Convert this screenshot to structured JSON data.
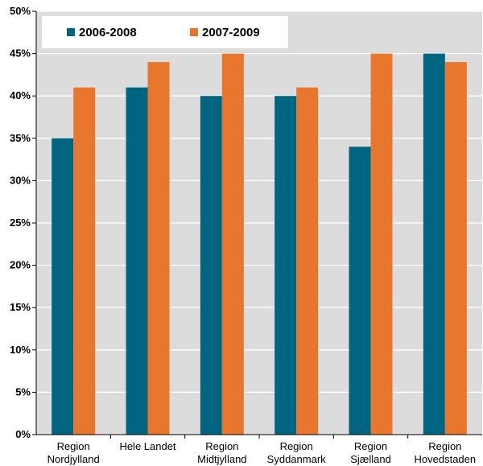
{
  "chart_data": {
    "type": "bar",
    "title": "",
    "xlabel": "",
    "ylabel": "",
    "categories": [
      [
        "Region",
        "Nordjylland"
      ],
      [
        "Hele Landet"
      ],
      [
        "Region",
        "Midtjylland"
      ],
      [
        "Region",
        "Syddanmark"
      ],
      [
        "Region",
        "Sjælland"
      ],
      [
        "Region",
        "Hovedstaden"
      ]
    ],
    "series": [
      {
        "name": "2006-2008",
        "color": "#006580",
        "values": [
          35,
          41,
          40,
          40,
          34,
          45
        ]
      },
      {
        "name": "2007-2009",
        "color": "#E8762C",
        "values": [
          41,
          44,
          45,
          41,
          45,
          44
        ]
      }
    ],
    "ylim": [
      0,
      50
    ],
    "yticks": [
      "0%",
      "5%",
      "10%",
      "15%",
      "20%",
      "25%",
      "30%",
      "35%",
      "40%",
      "45%",
      "50%"
    ],
    "grid": true,
    "legend_position": "top-left",
    "plot_background": "#DCDCDC",
    "gridline_color": "#FFFFFF"
  }
}
